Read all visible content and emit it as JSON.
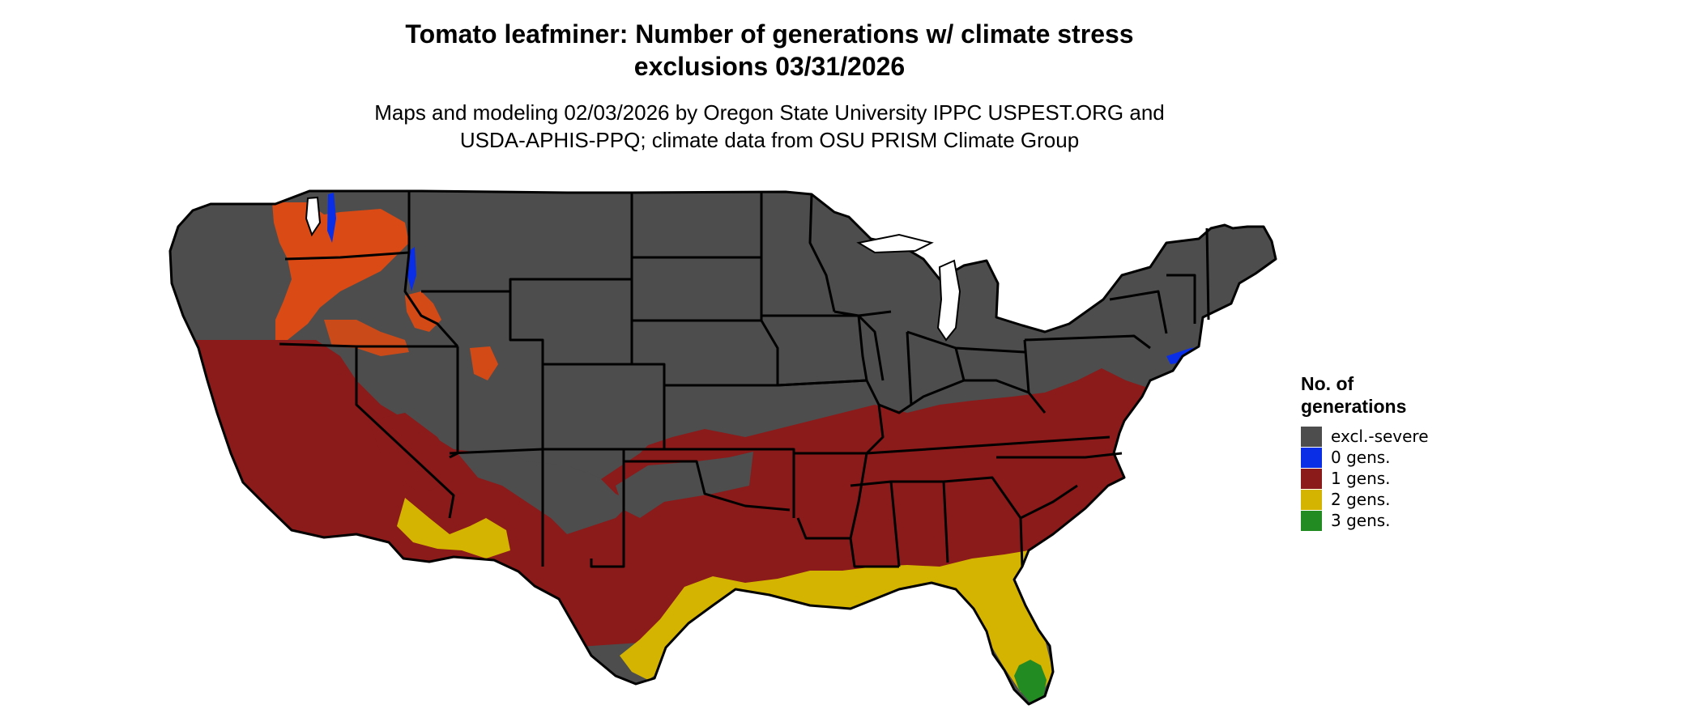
{
  "title": {
    "line1": "Tomato leafminer: Number of generations w/ climate stress",
    "line2": "exclusions 03/31/2026"
  },
  "subtitle": {
    "line1": "Maps and modeling 02/03/2026 by Oregon State University IPPC USPEST.ORG and",
    "line2": "USDA-APHIS-PPQ; climate data from OSU PRISM Climate Group"
  },
  "legend": {
    "title_line1": "No. of",
    "title_line2": "generations",
    "items": [
      {
        "label": "excl.-severe",
        "color": "#4d4d4d"
      },
      {
        "label": "0 gens.",
        "color": "#0a2ee6"
      },
      {
        "label": "1 gens.",
        "color": "#8b1a1a"
      },
      {
        "label": "2 gens.",
        "color": "#d4b400"
      },
      {
        "label": "3 gens.",
        "color": "#228b22"
      }
    ]
  },
  "colors": {
    "excluded": "#4d4d4d",
    "zero_gens": "#0a2ee6",
    "one_gen": "#8b1a1a",
    "two_gens": "#d4b400",
    "three_gens": "#228b22",
    "high_elevation_one_gen": "#e24a12",
    "border": "#000000"
  }
}
